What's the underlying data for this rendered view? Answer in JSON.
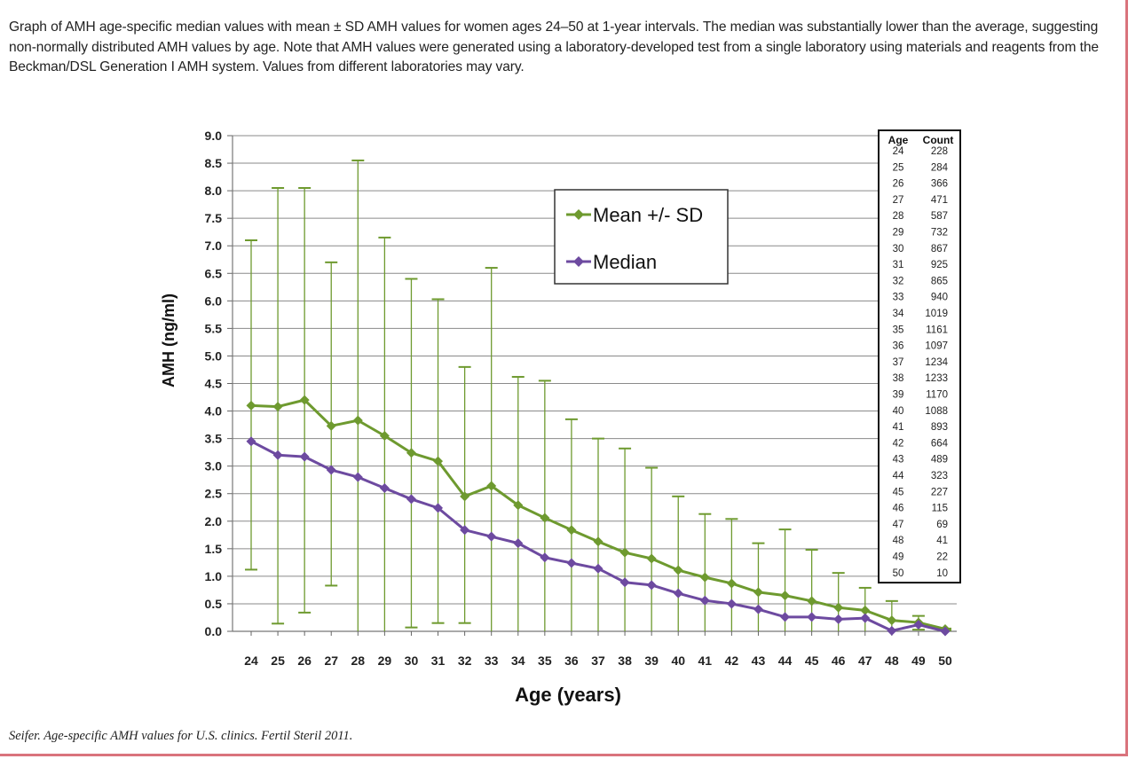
{
  "caption": "Graph of AMH age-specific median values with mean ± SD AMH values for women ages 24–50 at 1-year intervals. The median was substantially lower than the average, suggesting non-normally distributed AMH values by age. Note that AMH values were generated using a laboratory-developed test from a single laboratory using materials and reagents from the Beckman/DSL Generation I AMH system. Values from different laboratories may vary.",
  "citation": "Seifer. Age-specific AMH values for U.S. clinics. Fertil Steril 2011.",
  "colors": {
    "mean": "#6e9a2f",
    "median": "#6d4aa0",
    "grid": "#8a8a8a"
  },
  "chart_data": {
    "type": "line",
    "xlabel": "Age (years)",
    "ylabel": "AMH (ng/ml)",
    "ylim": [
      0,
      9
    ],
    "yticks": [
      "0.0",
      "0.5",
      "1.0",
      "1.5",
      "2.0",
      "2.5",
      "3.0",
      "3.5",
      "4.0",
      "4.5",
      "5.0",
      "5.5",
      "6.0",
      "6.5",
      "7.0",
      "7.5",
      "8.0",
      "8.5",
      "9.0"
    ],
    "grid": true,
    "legend_position": "top-center",
    "x": [
      24,
      25,
      26,
      27,
      28,
      29,
      30,
      31,
      32,
      33,
      34,
      35,
      36,
      37,
      38,
      39,
      40,
      41,
      42,
      43,
      44,
      45,
      46,
      47,
      48,
      49,
      50
    ],
    "series": [
      {
        "name": "Mean +/- SD",
        "values": [
          4.1,
          4.08,
          4.2,
          3.73,
          3.83,
          3.55,
          3.24,
          3.09,
          2.45,
          2.64,
          2.29,
          2.06,
          1.84,
          1.63,
          1.43,
          1.32,
          1.11,
          0.98,
          0.87,
          0.71,
          0.65,
          0.55,
          0.43,
          0.38,
          0.2,
          0.16,
          0.04
        ],
        "upper": [
          7.1,
          8.05,
          8.05,
          6.7,
          8.55,
          7.15,
          6.4,
          6.03,
          4.8,
          6.6,
          4.62,
          4.55,
          3.85,
          3.5,
          3.32,
          2.97,
          2.45,
          2.13,
          2.04,
          1.6,
          1.85,
          1.48,
          1.06,
          0.79,
          0.55,
          0.28,
          0.05
        ],
        "lower": [
          1.12,
          0.14,
          0.34,
          0.83,
          0.0,
          0.0,
          0.07,
          0.15,
          0.15,
          0.0,
          0.0,
          0.0,
          0.0,
          0.0,
          0.0,
          0.0,
          0.0,
          0.0,
          0.0,
          0.0,
          0.0,
          0.0,
          0.0,
          0.0,
          0.0,
          0.03,
          0.02
        ]
      },
      {
        "name": "Median",
        "values": [
          3.45,
          3.2,
          3.17,
          2.93,
          2.8,
          2.6,
          2.4,
          2.24,
          1.84,
          1.72,
          1.6,
          1.34,
          1.24,
          1.14,
          0.89,
          0.84,
          0.69,
          0.56,
          0.5,
          0.4,
          0.26,
          0.26,
          0.22,
          0.24,
          0.01,
          0.12,
          0.0
        ]
      }
    ],
    "table": {
      "headers": [
        "Age",
        "Count"
      ],
      "rows": [
        [
          "24",
          "228"
        ],
        [
          "25",
          "284"
        ],
        [
          "26",
          "366"
        ],
        [
          "27",
          "471"
        ],
        [
          "28",
          "587"
        ],
        [
          "29",
          "732"
        ],
        [
          "30",
          "867"
        ],
        [
          "31",
          "925"
        ],
        [
          "32",
          "865"
        ],
        [
          "33",
          "940"
        ],
        [
          "34",
          "1019"
        ],
        [
          "35",
          "1161"
        ],
        [
          "36",
          "1097"
        ],
        [
          "37",
          "1234"
        ],
        [
          "38",
          "1233"
        ],
        [
          "39",
          "1170"
        ],
        [
          "40",
          "1088"
        ],
        [
          "41",
          "893"
        ],
        [
          "42",
          "664"
        ],
        [
          "43",
          "489"
        ],
        [
          "44",
          "323"
        ],
        [
          "45",
          "227"
        ],
        [
          "46",
          "115"
        ],
        [
          "47",
          "69"
        ],
        [
          "48",
          "41"
        ],
        [
          "49",
          "22"
        ],
        [
          "50",
          "10"
        ]
      ]
    }
  }
}
